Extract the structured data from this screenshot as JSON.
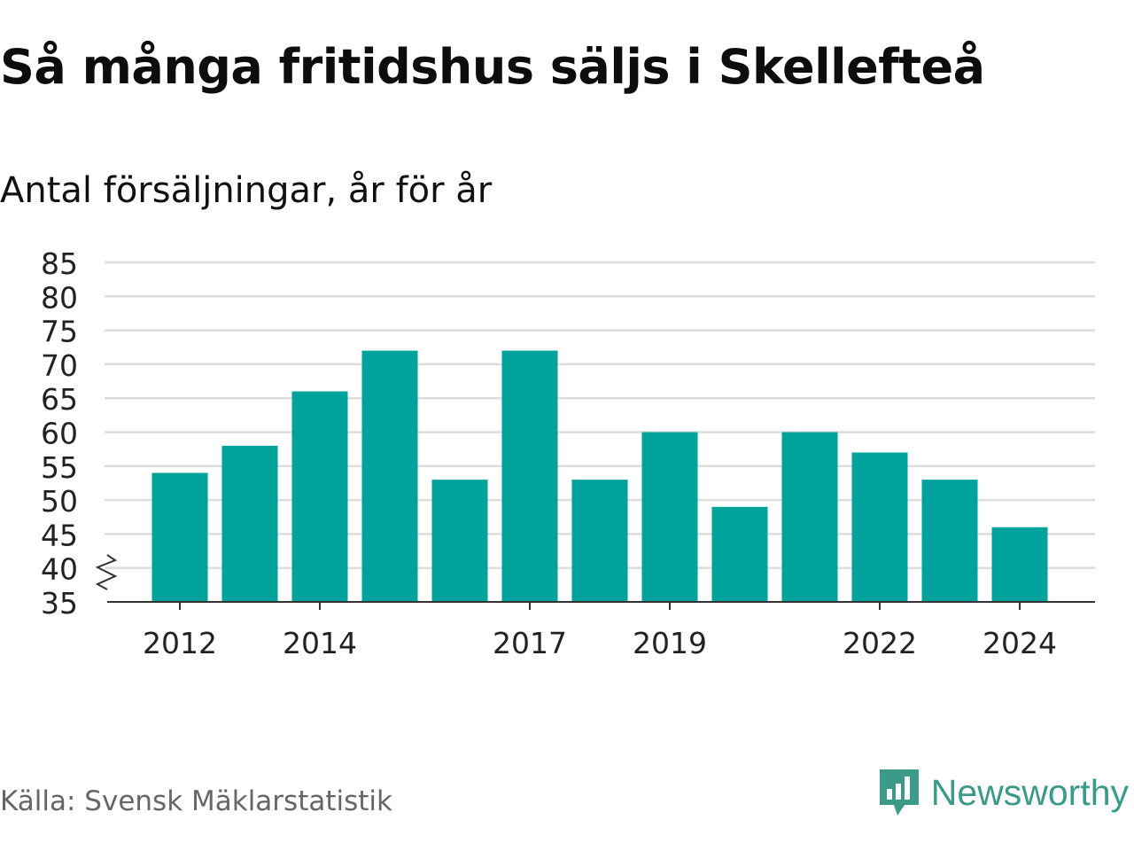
{
  "header": {
    "title": "Så många fritidshus säljs i Skellefteå",
    "subtitle": "Antal försäljningar, år för år"
  },
  "footer": {
    "source": "Källa: Svensk Mäklarstatistik",
    "brand": "Newsworthy",
    "brand_icon": "chart-bubble-icon"
  },
  "colors": {
    "bar": "#00a39b",
    "grid": "#dddddd",
    "axis": "#333333",
    "brand": "#3b9a89"
  },
  "chart_data": {
    "type": "bar",
    "categories": [
      "2012",
      "2013",
      "2014",
      "2015",
      "2016",
      "2017",
      "2018",
      "2019",
      "2020",
      "2021",
      "2022",
      "2023",
      "2024"
    ],
    "values": [
      54,
      58,
      66,
      72,
      53,
      72,
      53,
      60,
      49,
      60,
      57,
      53,
      46
    ],
    "x_tick_labels": [
      "2012",
      "2014",
      "2017",
      "2019",
      "2022",
      "2024"
    ],
    "y_ticks": [
      35,
      40,
      45,
      50,
      55,
      60,
      65,
      70,
      75,
      80,
      85
    ],
    "ylim": [
      35,
      85
    ],
    "axis_break": true,
    "grid": true,
    "xlabel": "",
    "ylabel": ""
  }
}
